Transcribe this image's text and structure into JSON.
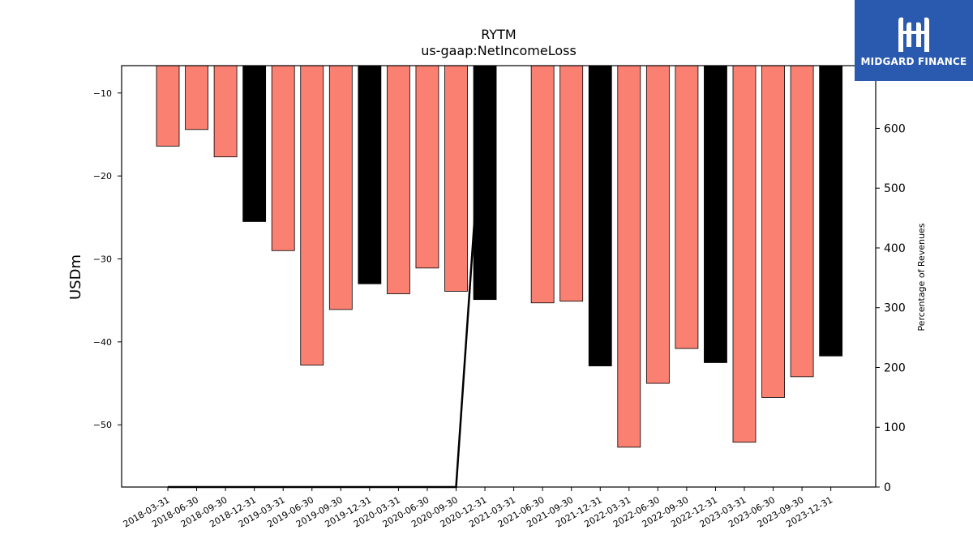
{
  "chart_data": {
    "type": "bar",
    "title": "RYTM",
    "subtitle": "us-gaap:NetIncomeLoss",
    "ylabel": "USDm",
    "y2label": "Percentage of Revenues",
    "ylim": [
      -57.5,
      -6.7
    ],
    "y2lim": [
      0,
      705
    ],
    "yticks": [
      -10,
      -20,
      -30,
      -40,
      -50
    ],
    "y2ticks": [
      0,
      100,
      200,
      300,
      400,
      500,
      600
    ],
    "categories": [
      "2018-03-31",
      "2018-06-30",
      "2018-09-30",
      "2018-12-31",
      "2019-03-31",
      "2019-06-30",
      "2019-09-30",
      "2019-12-31",
      "2020-03-31",
      "2020-06-30",
      "2020-09-30",
      "2020-12-31",
      "2021-03-31",
      "2021-06-30",
      "2021-09-30",
      "2021-12-31",
      "2022-03-31",
      "2022-06-30",
      "2022-09-30",
      "2022-12-31",
      "2023-03-31",
      "2023-06-30",
      "2023-09-30",
      "2023-12-31"
    ],
    "values": [
      -16.4,
      -14.4,
      -17.7,
      -25.5,
      -29.0,
      -42.8,
      -36.1,
      -33.0,
      -34.2,
      -31.1,
      -33.9,
      -34.9,
      null,
      -35.3,
      -35.1,
      -42.9,
      -52.7,
      -45.0,
      -40.8,
      -42.5,
      -52.1,
      -46.7,
      -44.2,
      -41.7
    ],
    "bar_kind": [
      "quarter",
      "quarter",
      "quarter",
      "annual",
      "quarter",
      "quarter",
      "quarter",
      "annual",
      "quarter",
      "quarter",
      "quarter",
      "annual",
      "quarter",
      "quarter",
      "quarter",
      "annual",
      "quarter",
      "quarter",
      "quarter",
      "annual",
      "quarter",
      "quarter",
      "quarter",
      "annual"
    ],
    "pct_revenue_line": {
      "categories": [
        "2018-03-31",
        "2018-06-30",
        "2018-09-30",
        "2018-12-31",
        "2019-03-31",
        "2019-06-30",
        "2019-09-30",
        "2019-12-31",
        "2020-03-31",
        "2020-06-30",
        "2020-09-30",
        "2020-12-31",
        "2021-03-31",
        "2021-06-30"
      ],
      "values": [
        0,
        0,
        0,
        0,
        0,
        0,
        0,
        0,
        0,
        0,
        0,
        700,
        null,
        700
      ]
    },
    "colors": {
      "quarter": "#fa8072",
      "annual": "#000000",
      "line": "#000000"
    },
    "grid": false,
    "legend": "none"
  },
  "logo": {
    "text": "MIDGARD FINANCE",
    "bg": "#2a5ab0"
  }
}
